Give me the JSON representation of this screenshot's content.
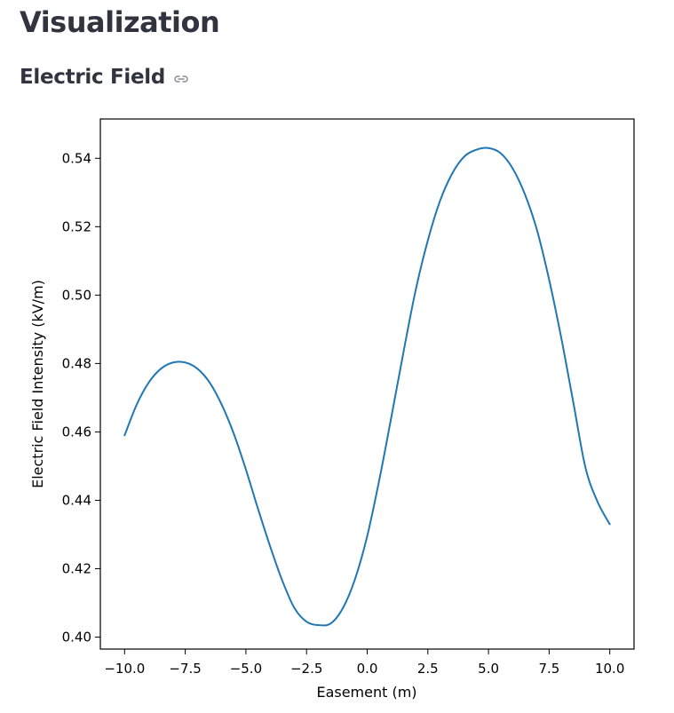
{
  "page": {
    "title": "Visualization",
    "section_title": "Electric Field",
    "anchor_icon": "link-icon"
  },
  "chart_data": {
    "type": "line",
    "xlabel": "Easement (m)",
    "ylabel": "Electric Field Intensity (kV/m)",
    "xlim": [
      -11.0,
      11.0
    ],
    "ylim": [
      0.3965,
      0.5515
    ],
    "grid": false,
    "xticks": [
      -10.0,
      -7.5,
      -5.0,
      -2.5,
      0.0,
      2.5,
      5.0,
      7.5,
      10.0
    ],
    "xtick_labels": [
      "−10.0",
      "−7.5",
      "−5.0",
      "−2.5",
      "0.0",
      "2.5",
      "5.0",
      "7.5",
      "10.0"
    ],
    "yticks": [
      0.4,
      0.42,
      0.44,
      0.46,
      0.48,
      0.5,
      0.52,
      0.54
    ],
    "ytick_labels": [
      "0.40",
      "0.42",
      "0.44",
      "0.46",
      "0.48",
      "0.50",
      "0.52",
      "0.54"
    ],
    "line_color": "#1f77b4",
    "series": [
      {
        "x": [
          -10.0,
          -9.5,
          -9.0,
          -8.5,
          -8.0,
          -7.5,
          -7.0,
          -6.5,
          -6.0,
          -5.5,
          -5.0,
          -4.5,
          -4.0,
          -3.5,
          -3.0,
          -2.5,
          -2.0,
          -1.5,
          -1.0,
          -0.5,
          0.0,
          0.5,
          1.0,
          1.5,
          2.0,
          2.5,
          3.0,
          3.5,
          4.0,
          4.5,
          5.0,
          5.5,
          6.0,
          6.5,
          7.0,
          7.5,
          8.0,
          8.5,
          9.0,
          9.5,
          10.0
        ],
        "y": [
          0.459,
          0.468,
          0.4745,
          0.4785,
          0.4803,
          0.4803,
          0.4785,
          0.4745,
          0.468,
          0.4595,
          0.449,
          0.4375,
          0.4265,
          0.4165,
          0.4085,
          0.4045,
          0.4035,
          0.404,
          0.4085,
          0.417,
          0.4295,
          0.446,
          0.4645,
          0.4835,
          0.5015,
          0.516,
          0.5275,
          0.5355,
          0.5405,
          0.5425,
          0.543,
          0.5415,
          0.537,
          0.5295,
          0.519,
          0.5045,
          0.4875,
          0.4685,
          0.4495,
          0.4395,
          0.433
        ]
      }
    ]
  }
}
